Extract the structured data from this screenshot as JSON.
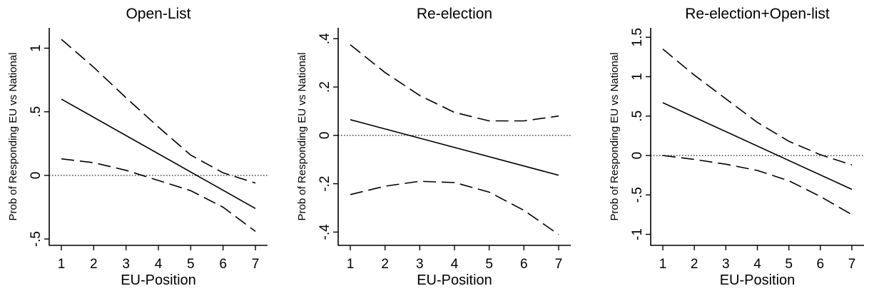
{
  "chart_data": [
    {
      "type": "line",
      "title": "Open-List",
      "xlabel": "EU-Position",
      "ylabel": "Prob of Responding EU vs National",
      "xlim": [
        1,
        7
      ],
      "ylim": [
        -0.55,
        1.16
      ],
      "xticks": [
        1,
        2,
        3,
        4,
        5,
        6,
        7
      ],
      "xtick_labels": [
        "1",
        "2",
        "3",
        "4",
        "5",
        "6",
        "7"
      ],
      "yticks": [
        -0.5,
        0,
        0.5,
        1
      ],
      "ytick_labels": [
        "-.5",
        "0",
        ".5",
        "1"
      ],
      "reference_line": 0,
      "grid": false,
      "series": [
        {
          "style": "solid",
          "x": [
            1,
            7
          ],
          "y": [
            0.6,
            -0.26
          ]
        },
        {
          "style": "dashed",
          "x": [
            1,
            2,
            3,
            4,
            5,
            6,
            6.5,
            7
          ],
          "y": [
            1.07,
            0.85,
            0.61,
            0.38,
            0.16,
            0.02,
            -0.02,
            -0.06
          ]
        },
        {
          "style": "dashed",
          "x": [
            1,
            2,
            3,
            4,
            5,
            6,
            7
          ],
          "y": [
            0.13,
            0.1,
            0.04,
            -0.04,
            -0.12,
            -0.25,
            -0.44
          ]
        }
      ]
    },
    {
      "type": "line",
      "title": "Re-election",
      "xlabel": "EU-Position",
      "ylabel": "Prob of Responding EU vs National",
      "xlim": [
        1,
        7
      ],
      "ylim": [
        -0.455,
        0.445
      ],
      "xticks": [
        1,
        2,
        3,
        4,
        5,
        6,
        7
      ],
      "xtick_labels": [
        "1",
        "2",
        "3",
        "4",
        "5",
        "6",
        "7"
      ],
      "yticks": [
        -0.4,
        -0.2,
        0,
        0.2,
        0.4
      ],
      "ytick_labels": [
        "-.4",
        "-.2",
        "0",
        ".2",
        ".4"
      ],
      "reference_line": 0,
      "grid": false,
      "series": [
        {
          "style": "solid",
          "x": [
            1,
            7
          ],
          "y": [
            0.065,
            -0.165
          ]
        },
        {
          "style": "dashed",
          "x": [
            1,
            2,
            3,
            4,
            5,
            6,
            7
          ],
          "y": [
            0.375,
            0.26,
            0.165,
            0.095,
            0.06,
            0.06,
            0.08
          ]
        },
        {
          "style": "dashed",
          "x": [
            1,
            2,
            3,
            4,
            5,
            6,
            7
          ],
          "y": [
            -0.245,
            -0.21,
            -0.19,
            -0.195,
            -0.235,
            -0.31,
            -0.41
          ]
        }
      ]
    },
    {
      "type": "line",
      "title": "Re-election+Open-list",
      "xlabel": "EU-Position",
      "ylabel": "Prob of Responding EU vs National",
      "xlim": [
        1,
        7
      ],
      "ylim": [
        -1.14,
        1.62
      ],
      "xticks": [
        1,
        2,
        3,
        4,
        5,
        6,
        7
      ],
      "xtick_labels": [
        "1",
        "2",
        "3",
        "4",
        "5",
        "6",
        "7"
      ],
      "yticks": [
        -1,
        -0.5,
        0,
        0.5,
        1,
        1.5
      ],
      "ytick_labels": [
        "-1",
        "-.5",
        "0",
        ".5",
        "1",
        "1.5"
      ],
      "reference_line": 0,
      "grid": false,
      "series": [
        {
          "style": "solid",
          "x": [
            1,
            7
          ],
          "y": [
            0.67,
            -0.43
          ]
        },
        {
          "style": "dashed",
          "x": [
            1,
            2,
            3,
            4,
            5,
            6,
            7
          ],
          "y": [
            1.35,
            1.02,
            0.72,
            0.42,
            0.18,
            0.01,
            -0.12
          ]
        },
        {
          "style": "dashed",
          "x": [
            1,
            2,
            3,
            4,
            5,
            6,
            7
          ],
          "y": [
            0.0,
            -0.05,
            -0.11,
            -0.19,
            -0.32,
            -0.52,
            -0.75
          ]
        }
      ]
    }
  ]
}
